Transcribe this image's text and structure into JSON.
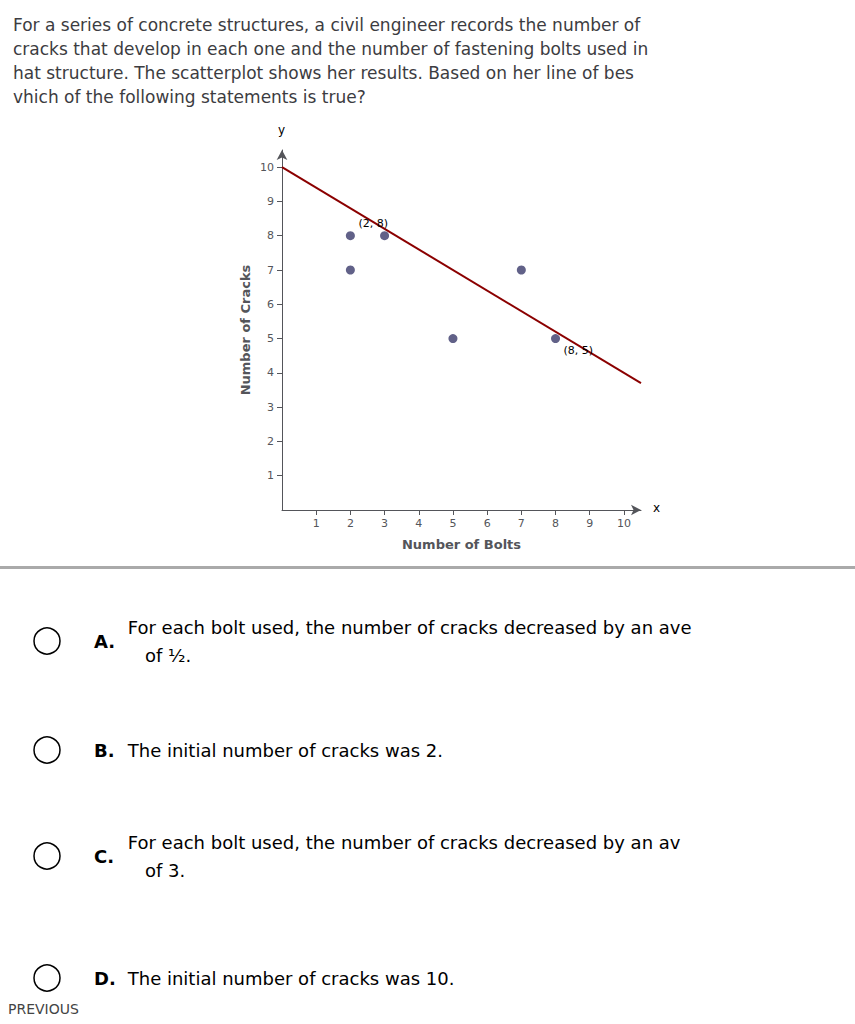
{
  "chart_data": {
    "type": "scatter",
    "title": "For a series of concrete structures, a civil engineer records the number of\ncracks that develop in each one and the number of fastening bolts used in\nhat structure. The scatterplot shows her results. Based on her line of bes\nvhich of the following statements is true?",
    "xlabel": "Number of Bolts",
    "ylabel": "Number of Cracks",
    "xlim": [
      0,
      10.5
    ],
    "ylim": [
      0,
      10.5
    ],
    "xticks": [
      1,
      2,
      3,
      4,
      5,
      6,
      7,
      8,
      9,
      10
    ],
    "yticks": [
      1,
      2,
      3,
      4,
      5,
      6,
      7,
      8,
      9,
      10
    ],
    "grid": false,
    "series": [
      {
        "type": "scatter",
        "color": "#3a3a6a",
        "x": [
          2,
          3,
          2,
          5,
          7,
          8
        ],
        "values": [
          8,
          8,
          7,
          5,
          7,
          5
        ]
      },
      {
        "type": "line",
        "color": "#8b0000",
        "x": [
          0,
          10.5
        ],
        "values": [
          10,
          3.7
        ]
      }
    ],
    "annotations": [
      {
        "text": "(2, 8)",
        "x": 2,
        "y": 8
      },
      {
        "text": "(8, 5)",
        "x": 8,
        "y": 5
      },
      {
        "text": "x"
      },
      {
        "text": "y"
      }
    ],
    "answers": [
      {
        "label": "A.",
        "text": " For each bolt used, the number of cracks decreased by an ave\n    of ½."
      },
      {
        "label": "B.",
        "text": " The initial number of cracks was 2."
      },
      {
        "label": "C.",
        "text": " For each bolt used, the number of cracks decreased by an av\n    of 3."
      },
      {
        "label": "D.",
        "text": " The initial number of cracks was 10."
      }
    ],
    "footer": "PREVIOUS"
  }
}
